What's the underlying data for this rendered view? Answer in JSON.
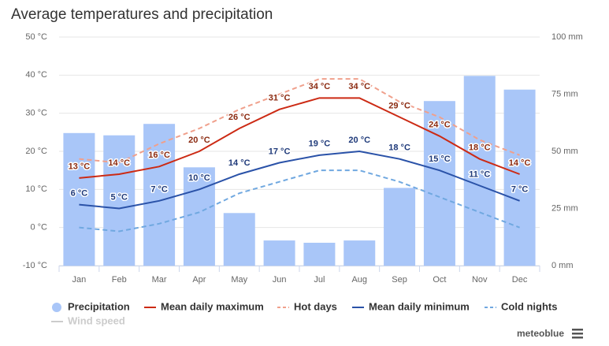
{
  "chart_data": {
    "type": "combo",
    "title": "Average temperatures and precipitation",
    "categories": [
      "Jan",
      "Feb",
      "Mar",
      "Apr",
      "May",
      "Jun",
      "Jul",
      "Aug",
      "Sep",
      "Oct",
      "Nov",
      "Dec"
    ],
    "ylim": [
      -10,
      50
    ],
    "yticks": [
      {
        "value": -10,
        "label": "-10 °C"
      },
      {
        "value": 0,
        "label": "0 °C"
      },
      {
        "value": 10,
        "label": "10 °C"
      },
      {
        "value": 20,
        "label": "20 °C"
      },
      {
        "value": 30,
        "label": "30 °C"
      },
      {
        "value": 40,
        "label": "40 °C"
      },
      {
        "value": 50,
        "label": "50 °C"
      }
    ],
    "y2lim": [
      0,
      100
    ],
    "y2ticks": [
      {
        "value": 0,
        "label": "0 mm"
      },
      {
        "value": 25,
        "label": "25 mm"
      },
      {
        "value": 50,
        "label": "50 mm"
      },
      {
        "value": 75,
        "label": "75 mm"
      },
      {
        "value": 100,
        "label": "100 mm"
      }
    ],
    "grid": true,
    "series": [
      {
        "name": "Precipitation",
        "type": "bar",
        "axis": "y2",
        "color": "#a9c6f8",
        "values": [
          58,
          57,
          62,
          43,
          23,
          11,
          10,
          11,
          34,
          72,
          83,
          77
        ]
      },
      {
        "name": "Mean daily maximum",
        "type": "line",
        "color": "#cc2a14",
        "label_color": "#8b2a10",
        "values": [
          13,
          14,
          16,
          20,
          26,
          31,
          34,
          34,
          29,
          24,
          18,
          14
        ],
        "value_labels": [
          "13 °C",
          "14 °C",
          "16 °C",
          "20 °C",
          "26 °C",
          "31 °C",
          "34 °C",
          "34 °C",
          "29 °C",
          "24 °C",
          "18 °C",
          "14 °C"
        ]
      },
      {
        "name": "Hot days",
        "type": "line",
        "dashed": true,
        "color": "#f0a08c",
        "values": [
          18,
          17,
          22,
          26,
          31,
          35,
          39,
          39,
          33,
          29,
          23,
          19
        ]
      },
      {
        "name": "Mean daily minimum",
        "type": "line",
        "color": "#2a52a8",
        "label_color": "#1f3a7a",
        "values": [
          6,
          5,
          7,
          10,
          14,
          17,
          19,
          20,
          18,
          15,
          11,
          7
        ],
        "value_labels": [
          "6 °C",
          "5 °C",
          "7 °C",
          "10 °C",
          "14 °C",
          "17 °C",
          "19 °C",
          "20 °C",
          "18 °C",
          "15 °C",
          "11 °C",
          "7 °C"
        ]
      },
      {
        "name": "Cold nights",
        "type": "line",
        "dashed": true,
        "color": "#70a8e0",
        "values": [
          0,
          -1,
          1,
          4,
          9,
          12,
          15,
          15,
          12,
          8,
          4,
          0
        ]
      },
      {
        "name": "Wind speed",
        "type": "line",
        "color": "#cccccc",
        "visible": false
      }
    ],
    "credit": "meteoblue"
  }
}
